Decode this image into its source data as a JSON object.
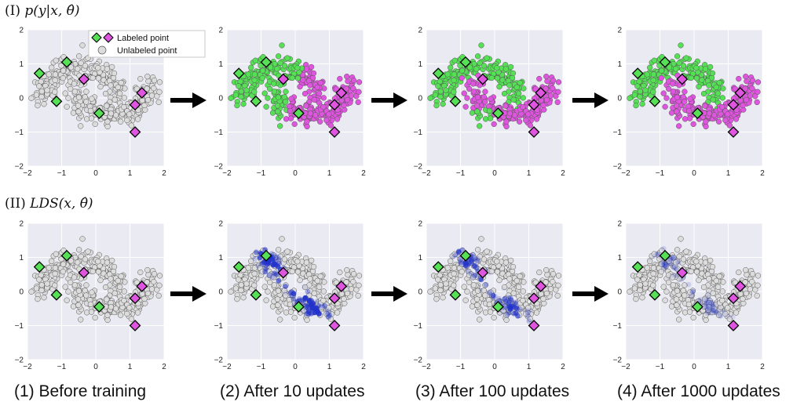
{
  "rows": [
    {
      "roman": "(I)",
      "formula": "p(y|x, θ̂)"
    },
    {
      "roman": "(II)",
      "formula": "LDS(x, θ̂)"
    }
  ],
  "captions": [
    "(1) Before training",
    "(2) After 10 updates",
    "(3) After 100 updates",
    "(4) After 1000 updates"
  ],
  "legend": {
    "labeled": "Labeled point",
    "unlabeled": "Unlabeled point"
  },
  "colors": {
    "background": "#eaeaf2",
    "grid": "#ffffff",
    "unlabeled": "#dcdcdc",
    "class_green": "#55e055",
    "class_magenta": "#e055e0",
    "lds_blue": "#2233cc",
    "point_edge": "#555555",
    "arrow": "#000000"
  },
  "chart_data": {
    "type": "scatter",
    "xlim": [
      -2,
      2
    ],
    "ylim": [
      -2,
      2
    ],
    "xticks": [
      -2,
      -1,
      0,
      1,
      2
    ],
    "yticks": [
      -2,
      -1,
      0,
      1,
      2
    ],
    "grid": true,
    "legend_position": "top-right",
    "labeled_points": {
      "green": [
        [
          -1.65,
          0.72
        ],
        [
          -0.85,
          1.05
        ],
        [
          -1.15,
          -0.1
        ],
        [
          0.1,
          -0.45
        ]
      ],
      "magenta": [
        [
          -0.35,
          0.55
        ],
        [
          1.35,
          0.15
        ],
        [
          1.15,
          -0.2
        ],
        [
          1.15,
          -1.0
        ]
      ]
    },
    "dataset": "two interleaving moons (unlabeled points)",
    "row1_panels": [
      "unlabeled",
      "partial",
      "near_converged",
      "converged"
    ],
    "row2_lds_intensity": [
      0,
      1.0,
      0.65,
      0.25
    ]
  }
}
